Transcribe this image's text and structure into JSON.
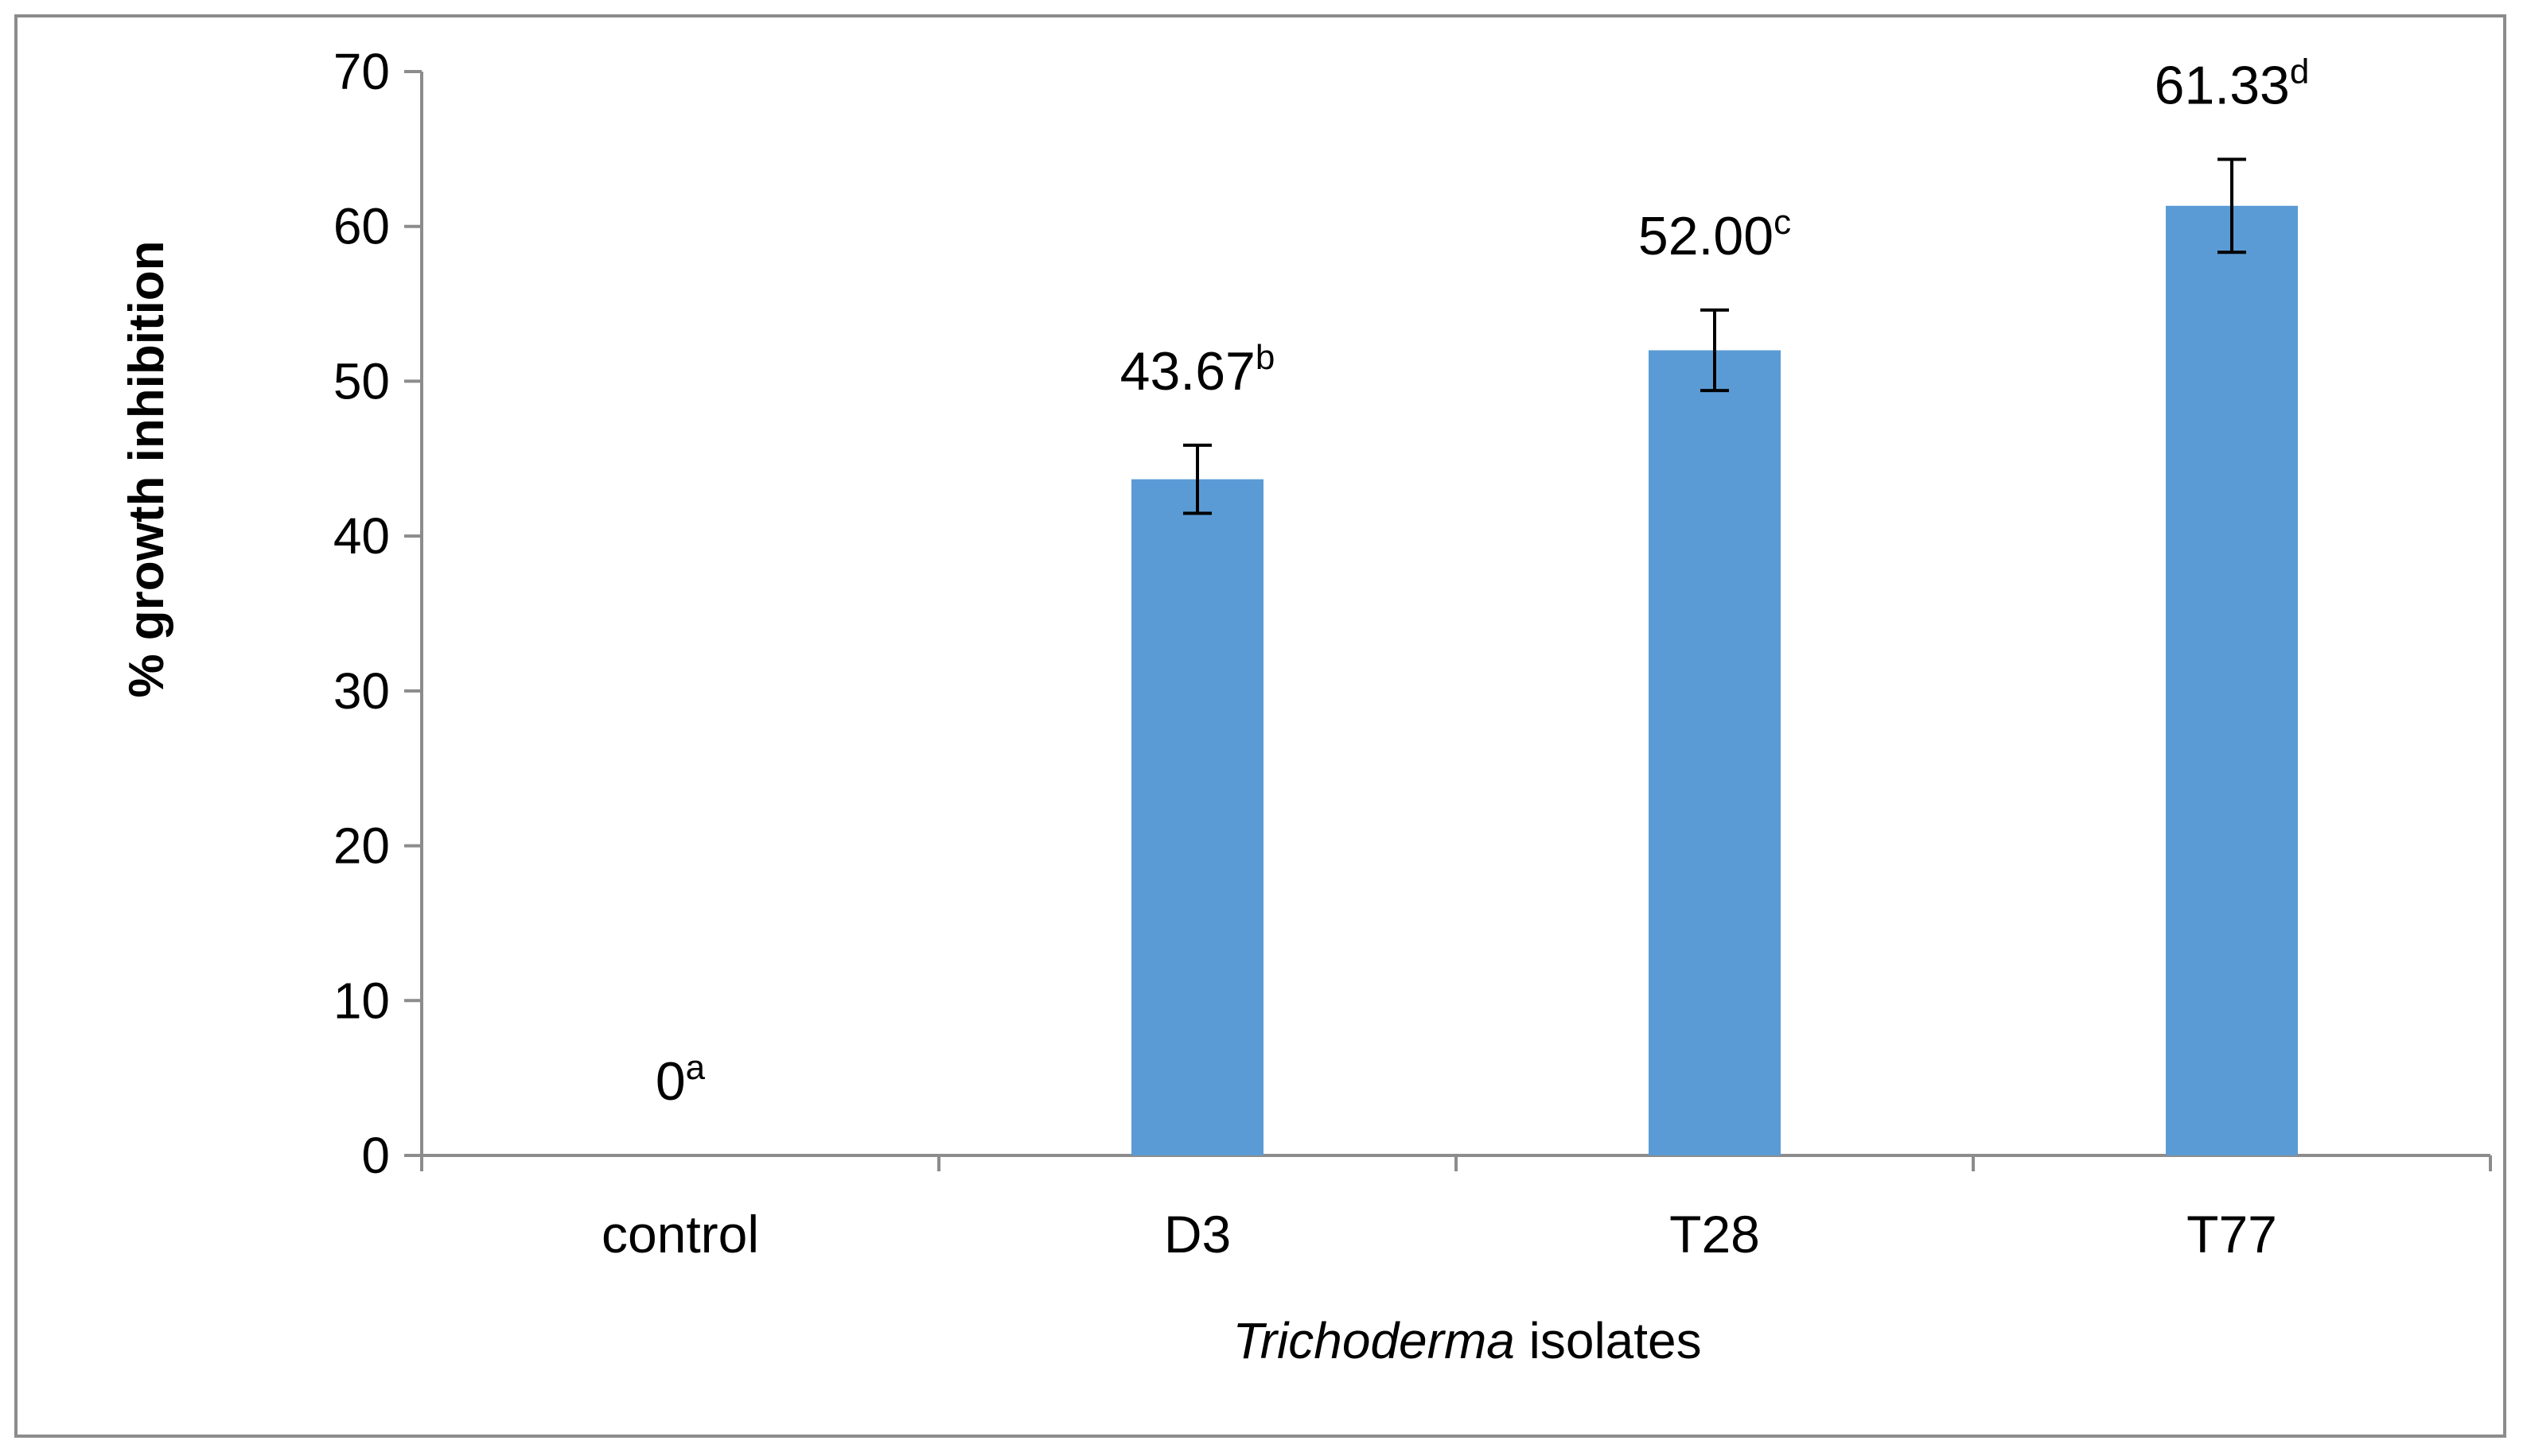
{
  "chart_data": {
    "type": "bar",
    "categories": [
      "control",
      "D3",
      "T28",
      "T77"
    ],
    "values": [
      0,
      43.67,
      52.0,
      61.33
    ],
    "error": [
      0,
      2.2,
      2.6,
      3.0
    ],
    "data_labels": [
      {
        "value": "0",
        "letter": "a"
      },
      {
        "value": "43.67",
        "letter": "b"
      },
      {
        "value": "52.00",
        "letter": "c"
      },
      {
        "value": "61.33",
        "letter": "d"
      }
    ],
    "xlabel": {
      "italic": "Trichoderma",
      "rest": " isolates"
    },
    "ylabel": "% growth inhibition",
    "ylim": [
      0,
      70
    ],
    "yticks": [
      0,
      10,
      20,
      30,
      40,
      50,
      60,
      70
    ],
    "grid": false,
    "legend": "none",
    "colors": {
      "bar": "#5b9bd5",
      "axis": "#8c8c8c",
      "error": "#000000"
    }
  }
}
